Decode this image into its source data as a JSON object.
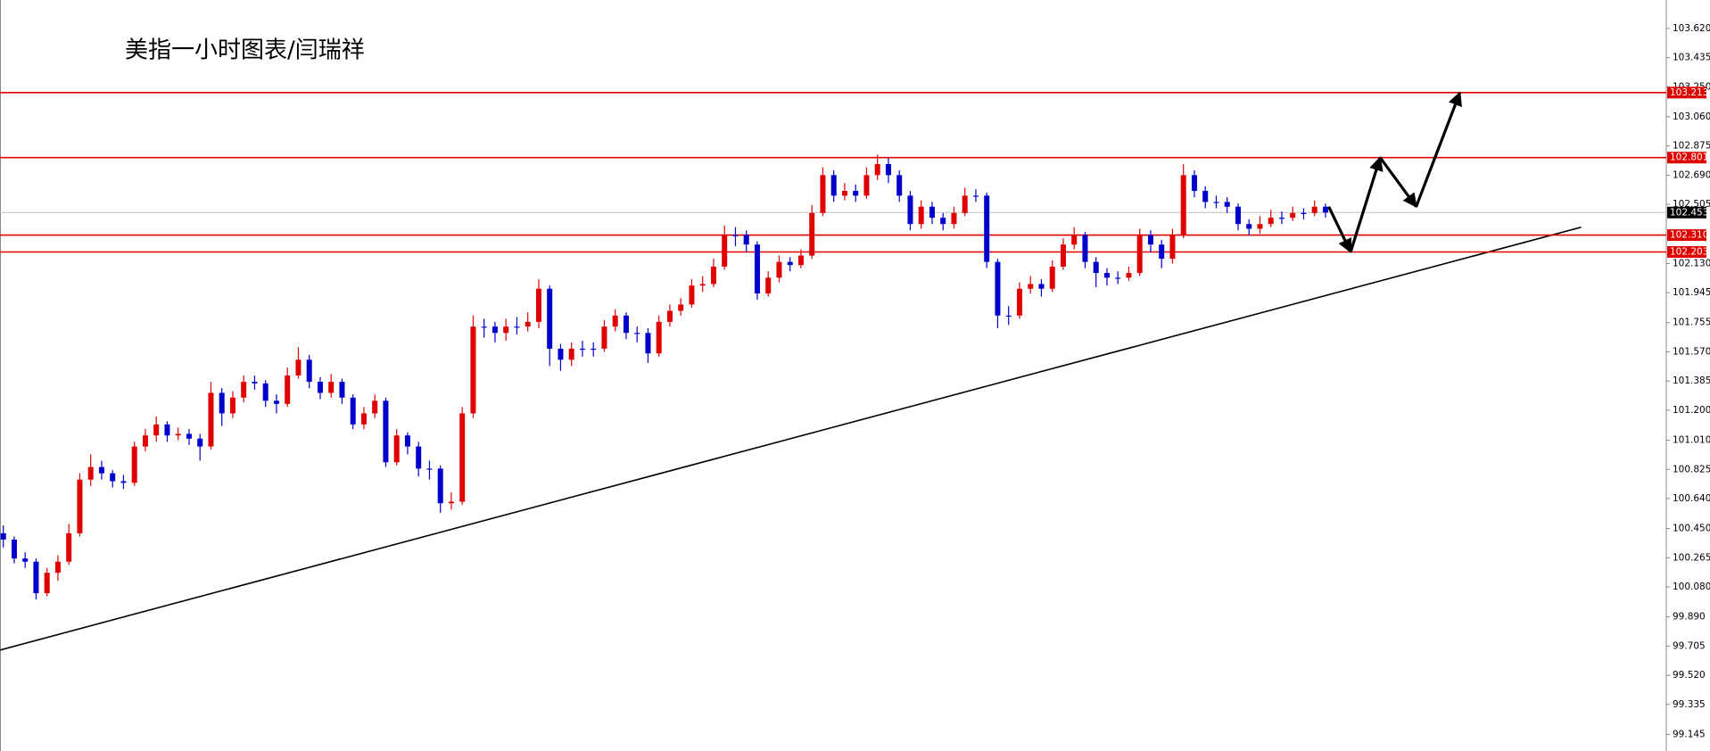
{
  "chart_data": {
    "type": "candlestick",
    "title": "美指一小时图表/闫瑞祥",
    "ylim": [
      99.04,
      103.8
    ],
    "yticks": [
      {
        "value": 103.62,
        "label": "103.620"
      },
      103.435,
      {
        "value": 103.25,
        "label": "103.250"
      },
      {
        "value": 103.06,
        "label": "103.060"
      },
      102.875,
      {
        "value": 102.69,
        "label": "102.690"
      },
      102.505,
      {
        "value": 102.13,
        "label": "102.130"
      },
      101.945,
      101.755,
      {
        "value": 101.57,
        "label": "101.570"
      },
      101.385,
      {
        "value": 101.2,
        "label": "101.200"
      },
      {
        "value": 101.01,
        "label": "101.010"
      },
      100.825,
      {
        "value": 100.64,
        "label": "100.640"
      },
      {
        "value": 100.45,
        "label": "100.450"
      },
      100.265,
      {
        "value": 100.08,
        "label": "100.080"
      },
      {
        "value": 99.89,
        "label": "99.890"
      },
      99.705,
      {
        "value": 99.52,
        "label": "99.520"
      },
      99.335,
      99.145
    ],
    "up_color": "#e00000",
    "down_color": "#0000cc",
    "candles": {
      "open": [
        100.42,
        100.38,
        100.26,
        100.24,
        100.04,
        100.17,
        100.24,
        100.42,
        100.76,
        100.84,
        100.8,
        100.75,
        100.74,
        100.97,
        101.04,
        101.11,
        101.04,
        101.05,
        101.02,
        100.97,
        101.31,
        101.18,
        101.28,
        101.38,
        101.37,
        101.26,
        101.24,
        101.42,
        101.52,
        101.38,
        101.31,
        101.38,
        101.28,
        101.11,
        101.18,
        101.26,
        100.87,
        101.04,
        100.97,
        100.83,
        100.83,
        100.61,
        100.62,
        101.18,
        101.73,
        101.73,
        101.69,
        101.73,
        101.73,
        101.76,
        101.97,
        101.59,
        101.52,
        101.59,
        101.59,
        101.59,
        101.73,
        101.8,
        101.69,
        101.69,
        101.56,
        101.76,
        101.83,
        101.87,
        101.99,
        102.0,
        102.11,
        102.31,
        102.31,
        102.25,
        101.94,
        102.04,
        102.14,
        102.12,
        102.18,
        102.45,
        102.69,
        102.56,
        102.59,
        102.56,
        102.69,
        102.76,
        102.69,
        102.56,
        102.38,
        102.49,
        102.42,
        102.38,
        102.45,
        102.56,
        102.56,
        102.14,
        101.8,
        101.8,
        101.97,
        102.0,
        101.97,
        102.11,
        102.25,
        102.31,
        102.14,
        102.07,
        102.04,
        102.04,
        102.07,
        102.31,
        102.25,
        102.16,
        102.31,
        102.69,
        102.59,
        102.52,
        102.52,
        102.49,
        102.38,
        102.35,
        102.38,
        102.42,
        102.42,
        102.45,
        102.45,
        102.49
      ],
      "high": [
        100.47,
        100.4,
        100.3,
        100.26,
        100.2,
        100.28,
        100.48,
        100.8,
        100.92,
        100.88,
        100.82,
        100.79,
        101.0,
        101.08,
        101.16,
        101.13,
        101.09,
        101.08,
        101.05,
        101.38,
        101.34,
        101.32,
        101.42,
        101.42,
        101.39,
        101.3,
        101.47,
        101.6,
        101.55,
        101.41,
        101.43,
        101.4,
        101.3,
        101.22,
        101.3,
        101.28,
        101.08,
        101.06,
        101.0,
        100.88,
        100.85,
        100.68,
        101.22,
        101.8,
        101.78,
        101.76,
        101.78,
        101.79,
        101.82,
        102.03,
        101.99,
        101.62,
        101.63,
        101.64,
        101.63,
        101.77,
        101.84,
        101.82,
        101.73,
        101.72,
        101.8,
        101.87,
        101.91,
        102.03,
        102.05,
        102.16,
        102.37,
        102.36,
        102.34,
        102.27,
        102.08,
        102.18,
        102.17,
        102.22,
        102.5,
        102.74,
        102.72,
        102.64,
        102.63,
        102.74,
        102.82,
        102.8,
        102.72,
        102.59,
        102.53,
        102.52,
        102.45,
        102.49,
        102.61,
        102.6,
        102.58,
        102.16,
        101.86,
        102.01,
        102.05,
        102.03,
        102.15,
        102.29,
        102.36,
        102.33,
        102.17,
        102.1,
        102.08,
        102.11,
        102.35,
        102.34,
        102.28,
        102.35,
        102.76,
        102.72,
        102.62,
        102.56,
        102.55,
        102.51,
        102.41,
        102.43,
        102.47,
        102.46,
        102.49,
        102.48,
        102.53,
        102.51
      ],
      "low": [
        100.33,
        100.23,
        100.2,
        100.0,
        100.02,
        100.12,
        100.22,
        100.4,
        100.72,
        100.76,
        100.71,
        100.7,
        100.72,
        100.94,
        101.0,
        101.0,
        101.01,
        100.98,
        100.88,
        100.95,
        101.1,
        101.15,
        101.25,
        101.33,
        101.22,
        101.18,
        101.22,
        101.4,
        101.34,
        101.27,
        101.28,
        101.24,
        101.08,
        101.08,
        101.15,
        100.84,
        100.85,
        100.92,
        100.78,
        100.76,
        100.55,
        100.57,
        100.6,
        101.15,
        101.66,
        101.63,
        101.64,
        101.68,
        101.7,
        101.72,
        101.48,
        101.45,
        101.48,
        101.54,
        101.54,
        101.57,
        101.7,
        101.65,
        101.63,
        101.5,
        101.54,
        101.73,
        101.8,
        101.85,
        101.95,
        101.98,
        102.09,
        102.24,
        102.2,
        101.9,
        101.92,
        102.01,
        102.08,
        102.1,
        102.16,
        102.43,
        102.52,
        102.53,
        102.52,
        102.54,
        102.66,
        102.64,
        102.52,
        102.34,
        102.35,
        102.38,
        102.34,
        102.35,
        102.43,
        102.52,
        102.1,
        101.72,
        101.74,
        101.78,
        101.94,
        101.92,
        101.95,
        102.09,
        102.22,
        102.1,
        101.98,
        101.99,
        102.0,
        102.02,
        102.05,
        102.2,
        102.1,
        102.13,
        102.29,
        102.55,
        102.48,
        102.48,
        102.45,
        102.34,
        102.31,
        102.32,
        102.36,
        102.38,
        102.4,
        102.41,
        102.43,
        102.42
      ],
      "close": [
        100.38,
        100.26,
        100.24,
        100.04,
        100.17,
        100.24,
        100.42,
        100.76,
        100.84,
        100.8,
        100.75,
        100.74,
        100.97,
        101.04,
        101.11,
        101.04,
        101.05,
        101.02,
        100.97,
        101.31,
        101.18,
        101.28,
        101.38,
        101.37,
        101.26,
        101.24,
        101.42,
        101.52,
        101.38,
        101.31,
        101.38,
        101.28,
        101.11,
        101.18,
        101.26,
        100.87,
        101.04,
        100.97,
        100.83,
        100.83,
        100.61,
        100.62,
        101.18,
        101.73,
        101.73,
        101.69,
        101.73,
        101.73,
        101.76,
        101.97,
        101.59,
        101.52,
        101.59,
        101.59,
        101.59,
        101.73,
        101.8,
        101.69,
        101.69,
        101.56,
        101.76,
        101.83,
        101.87,
        101.99,
        102.0,
        102.11,
        102.31,
        102.31,
        102.25,
        101.94,
        102.04,
        102.14,
        102.12,
        102.18,
        102.45,
        102.69,
        102.56,
        102.59,
        102.56,
        102.69,
        102.76,
        102.69,
        102.56,
        102.38,
        102.49,
        102.42,
        102.38,
        102.45,
        102.56,
        102.56,
        102.14,
        101.8,
        101.8,
        101.97,
        102.0,
        101.97,
        102.11,
        102.25,
        102.31,
        102.14,
        102.07,
        102.04,
        102.04,
        102.07,
        102.31,
        102.25,
        102.16,
        102.31,
        102.69,
        102.59,
        102.52,
        102.52,
        102.49,
        102.38,
        102.35,
        102.38,
        102.42,
        102.42,
        102.45,
        102.45,
        102.49,
        102.453
      ]
    },
    "current_price": {
      "value": 102.453,
      "label": "102.453"
    },
    "levels": [
      {
        "value": 103.213,
        "label": "103.213"
      },
      {
        "value": 102.801,
        "label": "102.801"
      },
      {
        "value": 102.31,
        "label": "102.310"
      },
      {
        "value": 102.203,
        "label": "102.203"
      }
    ],
    "level_color": "#e00000",
    "trendline": {
      "x": [
        -0.3,
        144.4
      ],
      "y": [
        99.68,
        102.36
      ]
    },
    "projection": {
      "x": [
        121.3,
        123.3,
        126,
        129.3,
        133.3
      ],
      "y": [
        102.49,
        102.203,
        102.801,
        102.49,
        103.213
      ]
    }
  }
}
